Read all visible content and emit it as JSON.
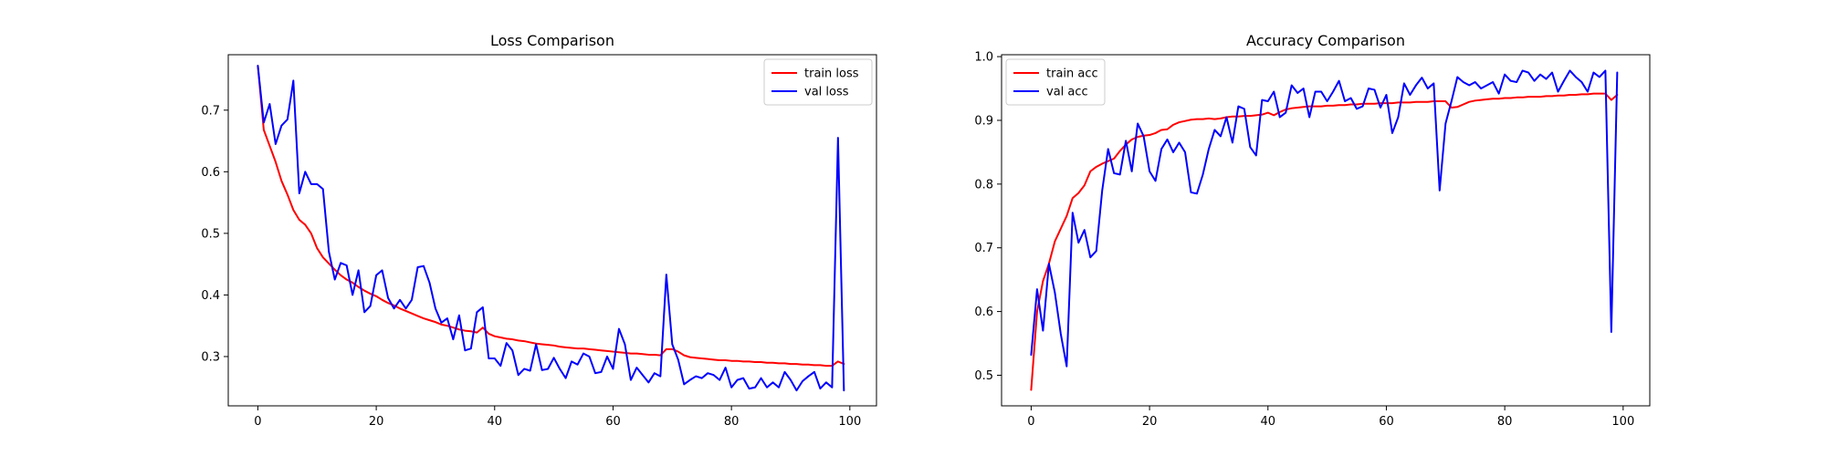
{
  "chart_data": [
    {
      "type": "line",
      "title": "Loss Comparison",
      "xlabel": "",
      "ylabel": "",
      "xlim": [
        -5,
        104.5
      ],
      "ylim": [
        0.22,
        0.79
      ],
      "x_ticks": [
        0,
        20,
        40,
        60,
        80,
        100
      ],
      "y_ticks": [
        0.3,
        0.4,
        0.5,
        0.6,
        0.7
      ],
      "y_tick_labels": [
        "0.3",
        "0.4",
        "0.5",
        "0.6",
        "0.7"
      ],
      "grid": false,
      "legend_position": "top-right",
      "series": [
        {
          "name": "train loss",
          "color": "#ff0000",
          "values": [
            0.772,
            0.668,
            0.642,
            0.616,
            0.585,
            0.563,
            0.538,
            0.522,
            0.514,
            0.5,
            0.476,
            0.461,
            0.451,
            0.441,
            0.432,
            0.425,
            0.42,
            0.413,
            0.407,
            0.402,
            0.398,
            0.392,
            0.387,
            0.383,
            0.378,
            0.374,
            0.37,
            0.366,
            0.362,
            0.359,
            0.356,
            0.352,
            0.35,
            0.347,
            0.344,
            0.342,
            0.341,
            0.339,
            0.347,
            0.337,
            0.333,
            0.331,
            0.329,
            0.328,
            0.326,
            0.325,
            0.323,
            0.321,
            0.32,
            0.319,
            0.318,
            0.316,
            0.315,
            0.314,
            0.313,
            0.313,
            0.312,
            0.311,
            0.31,
            0.309,
            0.308,
            0.307,
            0.306,
            0.305,
            0.305,
            0.304,
            0.303,
            0.303,
            0.302,
            0.312,
            0.312,
            0.308,
            0.302,
            0.299,
            0.298,
            0.297,
            0.296,
            0.295,
            0.294,
            0.294,
            0.293,
            0.293,
            0.292,
            0.292,
            0.291,
            0.291,
            0.29,
            0.29,
            0.289,
            0.289,
            0.288,
            0.288,
            0.287,
            0.287,
            0.286,
            0.286,
            0.285,
            0.285,
            0.292,
            0.288
          ]
        },
        {
          "name": "val loss",
          "color": "#0000ff",
          "values": [
            0.772,
            0.68,
            0.71,
            0.645,
            0.675,
            0.685,
            0.748,
            0.565,
            0.6,
            0.58,
            0.58,
            0.572,
            0.47,
            0.425,
            0.452,
            0.448,
            0.4,
            0.44,
            0.372,
            0.382,
            0.432,
            0.44,
            0.395,
            0.378,
            0.392,
            0.378,
            0.392,
            0.445,
            0.447,
            0.42,
            0.378,
            0.355,
            0.362,
            0.328,
            0.367,
            0.31,
            0.313,
            0.372,
            0.38,
            0.297,
            0.297,
            0.285,
            0.322,
            0.31,
            0.27,
            0.28,
            0.277,
            0.32,
            0.278,
            0.28,
            0.298,
            0.28,
            0.265,
            0.292,
            0.287,
            0.305,
            0.3,
            0.273,
            0.275,
            0.3,
            0.28,
            0.345,
            0.32,
            0.262,
            0.282,
            0.27,
            0.258,
            0.273,
            0.268,
            0.433,
            0.32,
            0.295,
            0.255,
            0.262,
            0.268,
            0.265,
            0.273,
            0.27,
            0.262,
            0.282,
            0.25,
            0.262,
            0.265,
            0.248,
            0.25,
            0.265,
            0.25,
            0.258,
            0.25,
            0.275,
            0.262,
            0.245,
            0.26,
            0.268,
            0.275,
            0.248,
            0.258,
            0.25,
            0.655,
            0.245
          ]
        }
      ]
    },
    {
      "type": "line",
      "title": "Accuracy Comparison",
      "xlabel": "",
      "ylabel": "",
      "xlim": [
        -5,
        104.5
      ],
      "ylim": [
        0.452,
        1.003
      ],
      "x_ticks": [
        0,
        20,
        40,
        60,
        80,
        100
      ],
      "y_ticks": [
        0.5,
        0.6,
        0.7,
        0.8,
        0.9,
        1.0
      ],
      "y_tick_labels": [
        "0.5",
        "0.6",
        "0.7",
        "0.8",
        "0.9",
        "1.0"
      ],
      "grid": false,
      "legend_position": "top-left",
      "series": [
        {
          "name": "train acc",
          "color": "#ff0000",
          "values": [
            0.477,
            0.6,
            0.648,
            0.675,
            0.71,
            0.73,
            0.75,
            0.778,
            0.786,
            0.798,
            0.82,
            0.827,
            0.832,
            0.836,
            0.84,
            0.852,
            0.862,
            0.87,
            0.874,
            0.876,
            0.877,
            0.88,
            0.885,
            0.886,
            0.893,
            0.897,
            0.899,
            0.901,
            0.902,
            0.902,
            0.903,
            0.902,
            0.903,
            0.905,
            0.906,
            0.906,
            0.907,
            0.907,
            0.908,
            0.909,
            0.912,
            0.908,
            0.913,
            0.917,
            0.919,
            0.92,
            0.921,
            0.922,
            0.922,
            0.922,
            0.923,
            0.923,
            0.924,
            0.924,
            0.925,
            0.925,
            0.926,
            0.926,
            0.926,
            0.927,
            0.927,
            0.927,
            0.928,
            0.928,
            0.928,
            0.929,
            0.929,
            0.929,
            0.93,
            0.93,
            0.93,
            0.92,
            0.921,
            0.925,
            0.929,
            0.931,
            0.932,
            0.933,
            0.934,
            0.934,
            0.935,
            0.935,
            0.936,
            0.936,
            0.937,
            0.937,
            0.937,
            0.938,
            0.938,
            0.939,
            0.939,
            0.94,
            0.94,
            0.941,
            0.941,
            0.942,
            0.942,
            0.942,
            0.932,
            0.94
          ]
        },
        {
          "name": "val acc",
          "color": "#0000ff",
          "values": [
            0.532,
            0.635,
            0.57,
            0.675,
            0.63,
            0.565,
            0.514,
            0.755,
            0.708,
            0.728,
            0.685,
            0.695,
            0.79,
            0.855,
            0.817,
            0.815,
            0.868,
            0.82,
            0.895,
            0.875,
            0.82,
            0.805,
            0.855,
            0.87,
            0.85,
            0.865,
            0.85,
            0.787,
            0.785,
            0.815,
            0.855,
            0.885,
            0.875,
            0.905,
            0.865,
            0.922,
            0.918,
            0.858,
            0.845,
            0.932,
            0.93,
            0.945,
            0.905,
            0.912,
            0.955,
            0.943,
            0.95,
            0.905,
            0.945,
            0.945,
            0.93,
            0.945,
            0.962,
            0.93,
            0.935,
            0.918,
            0.922,
            0.95,
            0.948,
            0.92,
            0.94,
            0.88,
            0.905,
            0.958,
            0.94,
            0.955,
            0.967,
            0.95,
            0.958,
            0.79,
            0.895,
            0.93,
            0.968,
            0.96,
            0.955,
            0.96,
            0.95,
            0.955,
            0.96,
            0.942,
            0.972,
            0.962,
            0.96,
            0.978,
            0.975,
            0.962,
            0.972,
            0.965,
            0.975,
            0.945,
            0.962,
            0.978,
            0.968,
            0.96,
            0.945,
            0.975,
            0.968,
            0.978,
            0.568,
            0.975
          ]
        }
      ]
    }
  ]
}
